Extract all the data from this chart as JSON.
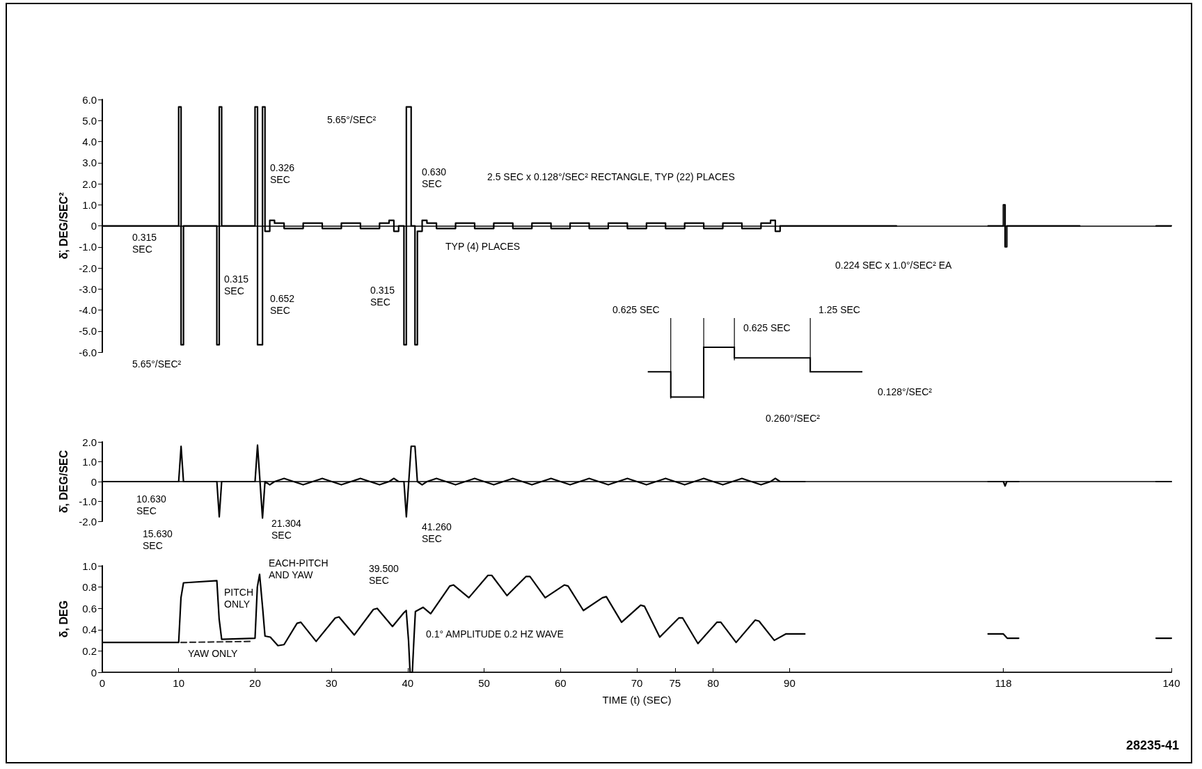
{
  "chart_data": [
    {
      "type": "step",
      "ylabel": "δ̈, DEG/SEC²",
      "xlim": [
        0,
        140
      ],
      "tick_labels": "y",
      "ylim": [
        -6,
        6
      ],
      "yticks": [
        {
          "value": -6,
          "label": "-6.0"
        },
        {
          "value": -5,
          "label": "-5.0"
        },
        {
          "value": -4,
          "label": "-4.0"
        },
        {
          "value": -3,
          "label": "-3.0"
        },
        {
          "value": -2,
          "label": "-2.0"
        },
        {
          "value": -1,
          "label": "-1.0"
        },
        {
          "value": 0,
          "label": "0"
        },
        {
          "value": 1,
          "label": "1.0"
        },
        {
          "value": 2,
          "label": "2.0"
        },
        {
          "value": 3,
          "label": "3.0"
        },
        {
          "value": 4,
          "label": "4.0"
        },
        {
          "value": 5,
          "label": "5.0"
        },
        {
          "value": 6,
          "label": "6.0"
        }
      ],
      "grid": false,
      "marker": "none",
      "ref_lines": [
        {
          "axis": "y",
          "value": 0
        }
      ],
      "series": [
        {
          "color": "#000000",
          "x": [
            0,
            10,
            10.315,
            10.63,
            15,
            15.315,
            15.63,
            20,
            20.326,
            20.978,
            21.304,
            21.929,
            22.554,
            23.804,
            26.304,
            28.804,
            31.304,
            33.804,
            36.304,
            37.554,
            38.179,
            38.804,
            39.5,
            39.815,
            40.445,
            40.945,
            41.26,
            41.885,
            42.51,
            43.76,
            46.26,
            48.76,
            51.26,
            53.76,
            56.26,
            58.76,
            61.26,
            63.76,
            66.26,
            68.76,
            71.26,
            73.76,
            76.26,
            78.76,
            81.26,
            83.76,
            86.26,
            87.51,
            88.135,
            88.76,
            92,
            104,
            116,
            118,
            118.224,
            118.448,
            120,
            128,
            138,
            140
          ],
          "values": [
            0,
            5.65,
            -5.65,
            0,
            -5.65,
            5.65,
            0,
            5.65,
            -5.65,
            5.65,
            -0.26,
            0.26,
            0.128,
            -0.128,
            0.128,
            -0.128,
            0.128,
            -0.128,
            0.128,
            0.26,
            -0.26,
            0,
            -5.65,
            5.65,
            0,
            -5.65,
            -0.26,
            0.26,
            0.128,
            -0.128,
            0.128,
            -0.128,
            0.128,
            -0.128,
            0.128,
            -0.128,
            0.128,
            -0.128,
            0.128,
            -0.128,
            0.128,
            -0.128,
            0.128,
            -0.128,
            0.128,
            -0.128,
            0.128,
            0.26,
            -0.26,
            0,
            0,
            null,
            0,
            1.0,
            -1.0,
            0,
            0,
            null,
            0,
            0
          ]
        }
      ],
      "annotations": [
        "0.315 SEC",
        "0.315 SEC",
        "0.326 SEC",
        "0.652 SEC",
        "0.630 SEC",
        "0.315 SEC",
        "5.65°/SEC²",
        "5.65°/SEC²",
        "2.5 SEC x 0.128°/SEC² RECTANGLE, TYP (22) PLACES",
        "TYP (4) PLACES",
        "0.224 SEC x 1.0°/SEC² EA",
        "0.625 SEC",
        "0.625 SEC",
        "1.25 SEC",
        "0.128°/SEC²",
        "0.260°/SEC²"
      ]
    },
    {
      "type": "line",
      "ylabel": "δ̇, DEG/SEC",
      "xlim": [
        0,
        140
      ],
      "tick_labels": "y",
      "ylim": [
        -2,
        2
      ],
      "yticks": [
        {
          "value": -2,
          "label": "-2.0"
        },
        {
          "value": -1,
          "label": "-1.0"
        },
        {
          "value": 0,
          "label": "0"
        },
        {
          "value": 1,
          "label": "1.0"
        },
        {
          "value": 2,
          "label": "2.0"
        }
      ],
      "grid": false,
      "marker": "none",
      "ref_lines": [
        {
          "axis": "y",
          "value": 0
        }
      ],
      "series": [
        {
          "color": "#000000",
          "x": [
            0,
            10,
            10.315,
            10.63,
            15,
            15.315,
            15.63,
            20,
            20.326,
            20.978,
            21.304,
            21.929,
            22.554,
            23.804,
            26.304,
            28.804,
            31.304,
            33.804,
            36.304,
            37.554,
            38.179,
            38.804,
            39.5,
            39.815,
            40.445,
            40.945,
            41.26,
            41.885,
            42.51,
            43.76,
            46.26,
            48.76,
            51.26,
            53.76,
            56.26,
            58.76,
            61.26,
            63.76,
            66.26,
            68.76,
            71.26,
            73.76,
            76.26,
            78.76,
            81.26,
            83.76,
            86.26,
            87.51,
            88.135,
            88.76,
            92,
            104,
            116,
            118,
            118.224,
            118.448,
            120,
            128,
            138,
            140
          ],
          "values": [
            0,
            0,
            1.78,
            0,
            0,
            -1.78,
            0,
            0,
            1.84,
            -1.84,
            0,
            -0.16,
            0,
            0.16,
            -0.16,
            0.16,
            -0.16,
            0.16,
            -0.16,
            0,
            0.16,
            0,
            0,
            -1.78,
            1.78,
            1.78,
            0,
            -0.16,
            0,
            0.16,
            -0.16,
            0.16,
            -0.16,
            0.16,
            -0.16,
            0.16,
            -0.16,
            0.16,
            -0.16,
            0.16,
            -0.16,
            0.16,
            -0.16,
            0.16,
            -0.16,
            0.16,
            -0.16,
            0,
            0.16,
            0,
            0,
            null,
            0,
            0,
            -0.22,
            0,
            0,
            null,
            0,
            0
          ]
        }
      ],
      "annotations": [
        "10.630 SEC",
        "15.630 SEC",
        "21.304 SEC",
        "41.260 SEC",
        "39.500 SEC"
      ]
    },
    {
      "type": "line",
      "ylabel": "δ, DEG",
      "xlabel": "TIME (t) (SEC)",
      "xlim": [
        0,
        140
      ],
      "xticks": [
        0,
        10,
        20,
        30,
        40,
        50,
        60,
        70,
        75,
        80,
        90,
        118,
        140
      ],
      "ylim": [
        0,
        1
      ],
      "yticks": [
        {
          "value": 0,
          "label": "0"
        },
        {
          "value": 0.2,
          "label": "0.2"
        },
        {
          "value": 0.4,
          "label": "0.4"
        },
        {
          "value": 0.6,
          "label": "0.6"
        },
        {
          "value": 0.8,
          "label": "0.8"
        },
        {
          "value": 1,
          "label": "1.0"
        }
      ],
      "grid": false,
      "marker": "none",
      "series": [
        {
          "color": "#000000",
          "line_style": "solid",
          "x": [
            0,
            10,
            10.3,
            10.63,
            15,
            15.3,
            15.63,
            20,
            20.3,
            20.6,
            21,
            21.304,
            22,
            23,
            23.8,
            25.5,
            26,
            28,
            30.5,
            31,
            33,
            35.5,
            36,
            38,
            39.5,
            39.8,
            40.1,
            40.3,
            40.6,
            40.8,
            41,
            42,
            43,
            45.5,
            46,
            48,
            50.5,
            51,
            53,
            55.5,
            56,
            58,
            60.5,
            61,
            63,
            65.5,
            66,
            68,
            70.5,
            71,
            73,
            75.5,
            76,
            78,
            80.5,
            81,
            83,
            85.5,
            86,
            88,
            89.5,
            92,
            104,
            116,
            118,
            118.5,
            120,
            128,
            138,
            140
          ],
          "values": [
            0.28,
            0.28,
            0.7,
            0.84,
            0.86,
            0.5,
            0.31,
            0.32,
            0.8,
            0.92,
            0.6,
            0.34,
            0.33,
            0.25,
            0.26,
            0.46,
            0.47,
            0.29,
            0.51,
            0.52,
            0.35,
            0.59,
            0.6,
            0.43,
            0.56,
            0.58,
            0.3,
            0.0,
            0.0,
            0.3,
            0.57,
            0.61,
            0.55,
            0.81,
            0.82,
            0.7,
            0.91,
            0.91,
            0.72,
            0.9,
            0.9,
            0.7,
            0.82,
            0.81,
            0.58,
            0.7,
            0.71,
            0.47,
            0.63,
            0.62,
            0.33,
            0.51,
            0.51,
            0.27,
            0.47,
            0.47,
            0.28,
            0.49,
            0.48,
            0.3,
            0.36,
            0.36,
            null,
            0.36,
            0.36,
            0.32,
            0.32,
            null,
            0.32,
            0.32
          ]
        },
        {
          "color": "#333333",
          "line_style": "dashed",
          "x": [
            10.3,
            19.5
          ],
          "values": [
            0.28,
            0.29
          ]
        }
      ],
      "annotations": [
        "PITCH ONLY",
        "EACH-PITCH AND YAW",
        "YAW ONLY",
        "0.1° AMPLITUDE 0.2 HZ WAVE",
        "28235-41"
      ]
    }
  ]
}
